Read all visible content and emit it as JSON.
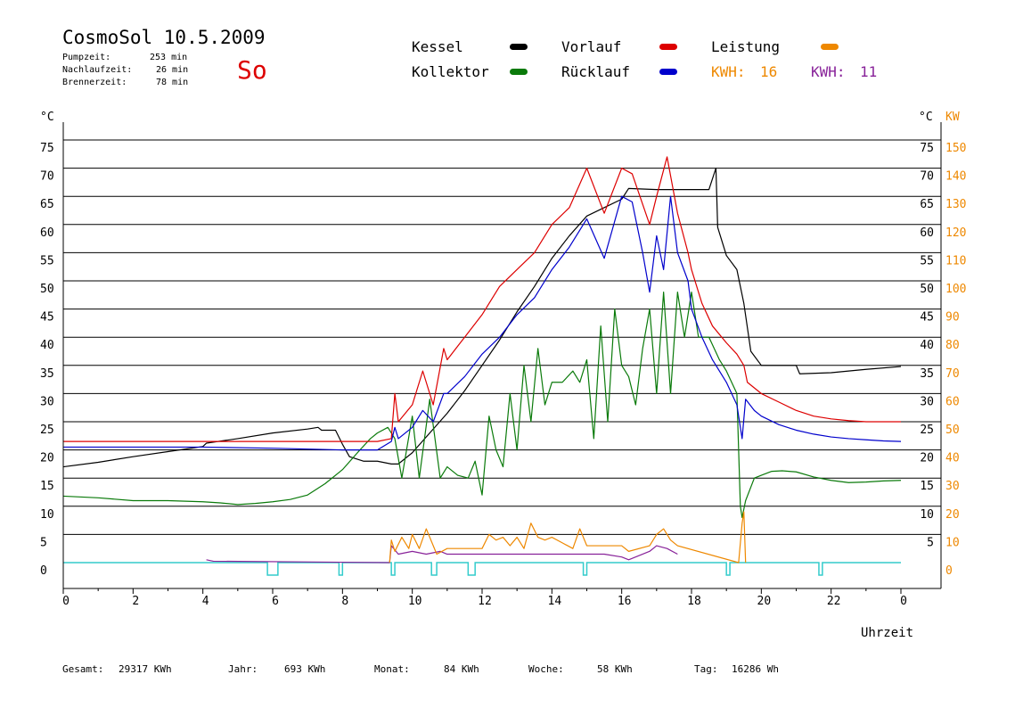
{
  "header": {
    "title": "CosmoSol 10.5.2009",
    "weather": "So",
    "stats": [
      {
        "label": "Pumpzeit:",
        "value": "253 min"
      },
      {
        "label": "Nachlaufzeit:",
        "value": "26 min"
      },
      {
        "label": "Brennerzeit:",
        "value": "78 min"
      }
    ]
  },
  "legend": {
    "kessel": "Kessel",
    "kollektor": "Kollektor",
    "vorlauf": "Vorlauf",
    "ruecklauf": "Rücklauf",
    "leistung": "Leistung",
    "kwh1_label": "KWH:",
    "kwh1_value": "16",
    "kwh2_label": "KWH:",
    "kwh2_value": "11"
  },
  "colors": {
    "kessel": "#000000",
    "kollektor": "#0a7a0a",
    "vorlauf": "#dd0000",
    "ruecklauf": "#0000cc",
    "leistung": "#ee8800",
    "kwh2": "#882299",
    "pump": "#33cccc",
    "weather": "#dd0000"
  },
  "footer": [
    {
      "label": "Gesamt:",
      "value": "29317 KWh"
    },
    {
      "label": "Jahr:",
      "value": "693 KWh"
    },
    {
      "label": "Monat:",
      "value": "84 KWh"
    },
    {
      "label": "Woche:",
      "value": "58 KWh"
    },
    {
      "label": "Tag:",
      "value": "16286 Wh"
    }
  ],
  "chart_data": {
    "type": "line",
    "xlabel": "Uhrzeit",
    "ylabel_left": "°C",
    "ylabel_right": "°C",
    "ylabel_right2": "KW",
    "xlim": [
      0,
      24
    ],
    "ylim": [
      0,
      75
    ],
    "ylim_kw": [
      0,
      150
    ],
    "x_ticks": [
      "0",
      "2",
      "4",
      "6",
      "8",
      "10",
      "12",
      "14",
      "16",
      "18",
      "20",
      "22",
      "0"
    ],
    "y_ticks": [
      0,
      5,
      10,
      15,
      20,
      25,
      30,
      35,
      40,
      45,
      50,
      55,
      60,
      65,
      70,
      75
    ],
    "y_ticks_right": [
      "",
      "5",
      "10",
      "15",
      "20",
      "25",
      "30",
      "35",
      "40",
      "45",
      "50",
      "55",
      "60",
      "65",
      "70",
      "75"
    ],
    "y_ticks_kw": [
      0,
      10,
      20,
      30,
      40,
      50,
      60,
      70,
      80,
      90,
      100,
      110,
      120,
      130,
      140,
      150
    ],
    "grid": true,
    "series": [
      {
        "name": "Kessel",
        "key": "kessel",
        "x": [
          0,
          1,
          2,
          3,
          4,
          4.1,
          5,
          6,
          7,
          7.3,
          7.4,
          7.8,
          8,
          8.2,
          8.6,
          9,
          9.4,
          9.6,
          10,
          10.5,
          11,
          11.5,
          12,
          12.5,
          13,
          13.5,
          14,
          14.5,
          15,
          15.5,
          16,
          16.2,
          17,
          17.5,
          18,
          18.5,
          18.7,
          18.75,
          19,
          19.3,
          19.5,
          19.7,
          20,
          20.5,
          21,
          21.1,
          22,
          23,
          24
        ],
        "y": [
          17,
          17.8,
          18.8,
          19.7,
          20.6,
          21.2,
          22,
          23,
          23.7,
          24,
          23.5,
          23.5,
          21,
          18.8,
          18,
          18,
          17.5,
          17.5,
          19.5,
          23,
          26.5,
          30.5,
          35,
          39.5,
          44.5,
          49,
          54,
          58,
          61.5,
          63,
          64.5,
          66.4,
          66.2,
          66.2,
          66.2,
          66.2,
          70,
          59.5,
          54.5,
          52,
          46,
          37.5,
          35,
          35,
          35,
          33.5,
          33.7,
          34.3,
          34.8
        ]
      },
      {
        "name": "Kollektor",
        "key": "kollektor",
        "x": [
          0,
          1,
          2,
          3,
          4,
          4.5,
          5,
          5.5,
          6,
          6.5,
          7,
          7.5,
          8,
          8.5,
          8.8,
          9,
          9.3,
          9.5,
          9.7,
          10,
          10.2,
          10.5,
          10.8,
          11,
          11.3,
          11.6,
          11.8,
          12,
          12.2,
          12.4,
          12.6,
          12.8,
          13,
          13.2,
          13.4,
          13.6,
          13.8,
          14,
          14.3,
          14.6,
          14.8,
          15,
          15.2,
          15.4,
          15.6,
          15.8,
          16,
          16.2,
          16.4,
          16.6,
          16.8,
          17,
          17.2,
          17.4,
          17.6,
          17.8,
          18,
          18.2,
          18.5,
          18.8,
          19,
          19.3,
          19.4,
          19.45,
          19.55,
          19.8,
          20,
          20.3,
          20.6,
          21,
          21.5,
          22,
          22.5,
          23,
          23.5,
          24
        ],
        "y": [
          11.8,
          11.5,
          11,
          11,
          10.8,
          10.6,
          10.3,
          10.5,
          10.8,
          11.2,
          12,
          14,
          16.5,
          20,
          22,
          23,
          24,
          22,
          15,
          26,
          15,
          29,
          15,
          17,
          15.5,
          15,
          18,
          12,
          26,
          20,
          17,
          30,
          20,
          35,
          25,
          38,
          28,
          32,
          32,
          34,
          32,
          36,
          22,
          42,
          25,
          45,
          35,
          33,
          28,
          38,
          45,
          30,
          48,
          30,
          48,
          40,
          48,
          40,
          40,
          36,
          34,
          30,
          10,
          8,
          11,
          15,
          15.5,
          16.2,
          16.3,
          16.1,
          15.2,
          14.6,
          14.2,
          14.3,
          14.5,
          14.6
        ]
      },
      {
        "name": "Vorlauf",
        "key": "vorlauf",
        "x": [
          0,
          2,
          4,
          6,
          8,
          9,
          9.4,
          9.5,
          9.6,
          10,
          10.3,
          10.6,
          10.9,
          11,
          11.5,
          12,
          12.5,
          13,
          13.5,
          14,
          14.5,
          15,
          15.5,
          16,
          16.3,
          16.8,
          17,
          17.3,
          17.6,
          17.9,
          18,
          18.3,
          18.6,
          19,
          19.3,
          19.5,
          19.6,
          20,
          20.5,
          21,
          21.5,
          22,
          22.5,
          23,
          23.5,
          24
        ],
        "y": [
          21.5,
          21.5,
          21.5,
          21.5,
          21.5,
          21.5,
          22,
          30,
          25,
          28,
          34,
          28,
          38,
          36,
          40,
          44,
          49,
          52,
          55,
          60,
          63,
          70,
          62,
          70,
          69,
          60,
          65,
          72,
          62,
          55,
          52,
          46,
          42,
          39,
          37,
          35,
          32,
          30,
          28.5,
          27,
          26,
          25.5,
          25.2,
          25,
          25,
          25
        ]
      },
      {
        "name": "Rücklauf",
        "key": "ruecklauf",
        "x": [
          0,
          2,
          4,
          6,
          8,
          9,
          9.4,
          9.5,
          9.6,
          10,
          10.3,
          10.6,
          10.9,
          11,
          11.5,
          12,
          12.5,
          13,
          13.5,
          14,
          14.5,
          15,
          15.5,
          16,
          16.3,
          16.6,
          16.8,
          17,
          17.2,
          17.4,
          17.6,
          17.9,
          18,
          18.3,
          18.6,
          19,
          19.3,
          19.45,
          19.55,
          19.8,
          20,
          20.5,
          21,
          21.5,
          22,
          22.5,
          23,
          23.5,
          24
        ],
        "y": [
          20.5,
          20.5,
          20.5,
          20.3,
          20,
          20,
          21.5,
          24,
          22,
          24,
          27,
          25,
          30,
          30,
          33,
          37,
          40,
          44,
          47,
          52,
          56,
          61,
          54,
          65,
          64,
          55,
          48,
          58,
          52,
          65,
          55,
          50,
          45,
          40,
          36,
          32,
          28,
          22,
          29,
          27,
          26,
          24.5,
          23.5,
          22.8,
          22.3,
          22,
          21.8,
          21.6,
          21.5
        ]
      },
      {
        "name": "Leistung",
        "key": "leistung",
        "unit": "KW",
        "x": [
          9.35,
          9.4,
          9.5,
          9.7,
          9.9,
          10,
          10.2,
          10.4,
          10.6,
          10.7,
          11,
          11.5,
          12,
          12.2,
          12.4,
          12.6,
          12.8,
          13,
          13.2,
          13.4,
          13.6,
          13.8,
          14,
          14.3,
          14.6,
          14.8,
          15,
          15.5,
          16,
          16.2,
          16.8,
          17,
          17.2,
          17.4,
          17.6,
          19.35,
          19.45,
          19.5,
          19.55
        ],
        "y": [
          0,
          8,
          4,
          9,
          5,
          10,
          5,
          12,
          6,
          3,
          5,
          5,
          5,
          10,
          8,
          9,
          6,
          9,
          5,
          14,
          9,
          8,
          9,
          7,
          5,
          12,
          6,
          6,
          6,
          4,
          6,
          10,
          12,
          8,
          6,
          0,
          14,
          18,
          0
        ]
      },
      {
        "name": "KWH 11",
        "key": "kwh2",
        "unit": "KW",
        "x": [
          4.1,
          4.3,
          9.35,
          9.4,
          9.6,
          10,
          10.4,
          10.8,
          11,
          11.5,
          12,
          12.5,
          13,
          13.5,
          14,
          14.5,
          15,
          15.5,
          16,
          16.2,
          16.8,
          17,
          17.3,
          17.6
        ],
        "y": [
          1,
          0.5,
          0,
          6,
          3,
          4,
          3,
          4,
          3,
          3,
          3,
          3,
          3,
          3,
          3,
          3,
          3,
          3,
          2,
          1,
          4,
          6,
          5,
          3
        ]
      }
    ],
    "pump_on_intervals": [
      [
        5.85,
        6.15
      ],
      [
        7.9,
        8.0
      ],
      [
        9.4,
        9.5
      ],
      [
        10.55,
        10.7
      ],
      [
        11.6,
        11.8
      ],
      [
        14.9,
        15.0
      ],
      [
        19.0,
        19.1
      ],
      [
        21.65,
        21.75
      ]
    ]
  }
}
